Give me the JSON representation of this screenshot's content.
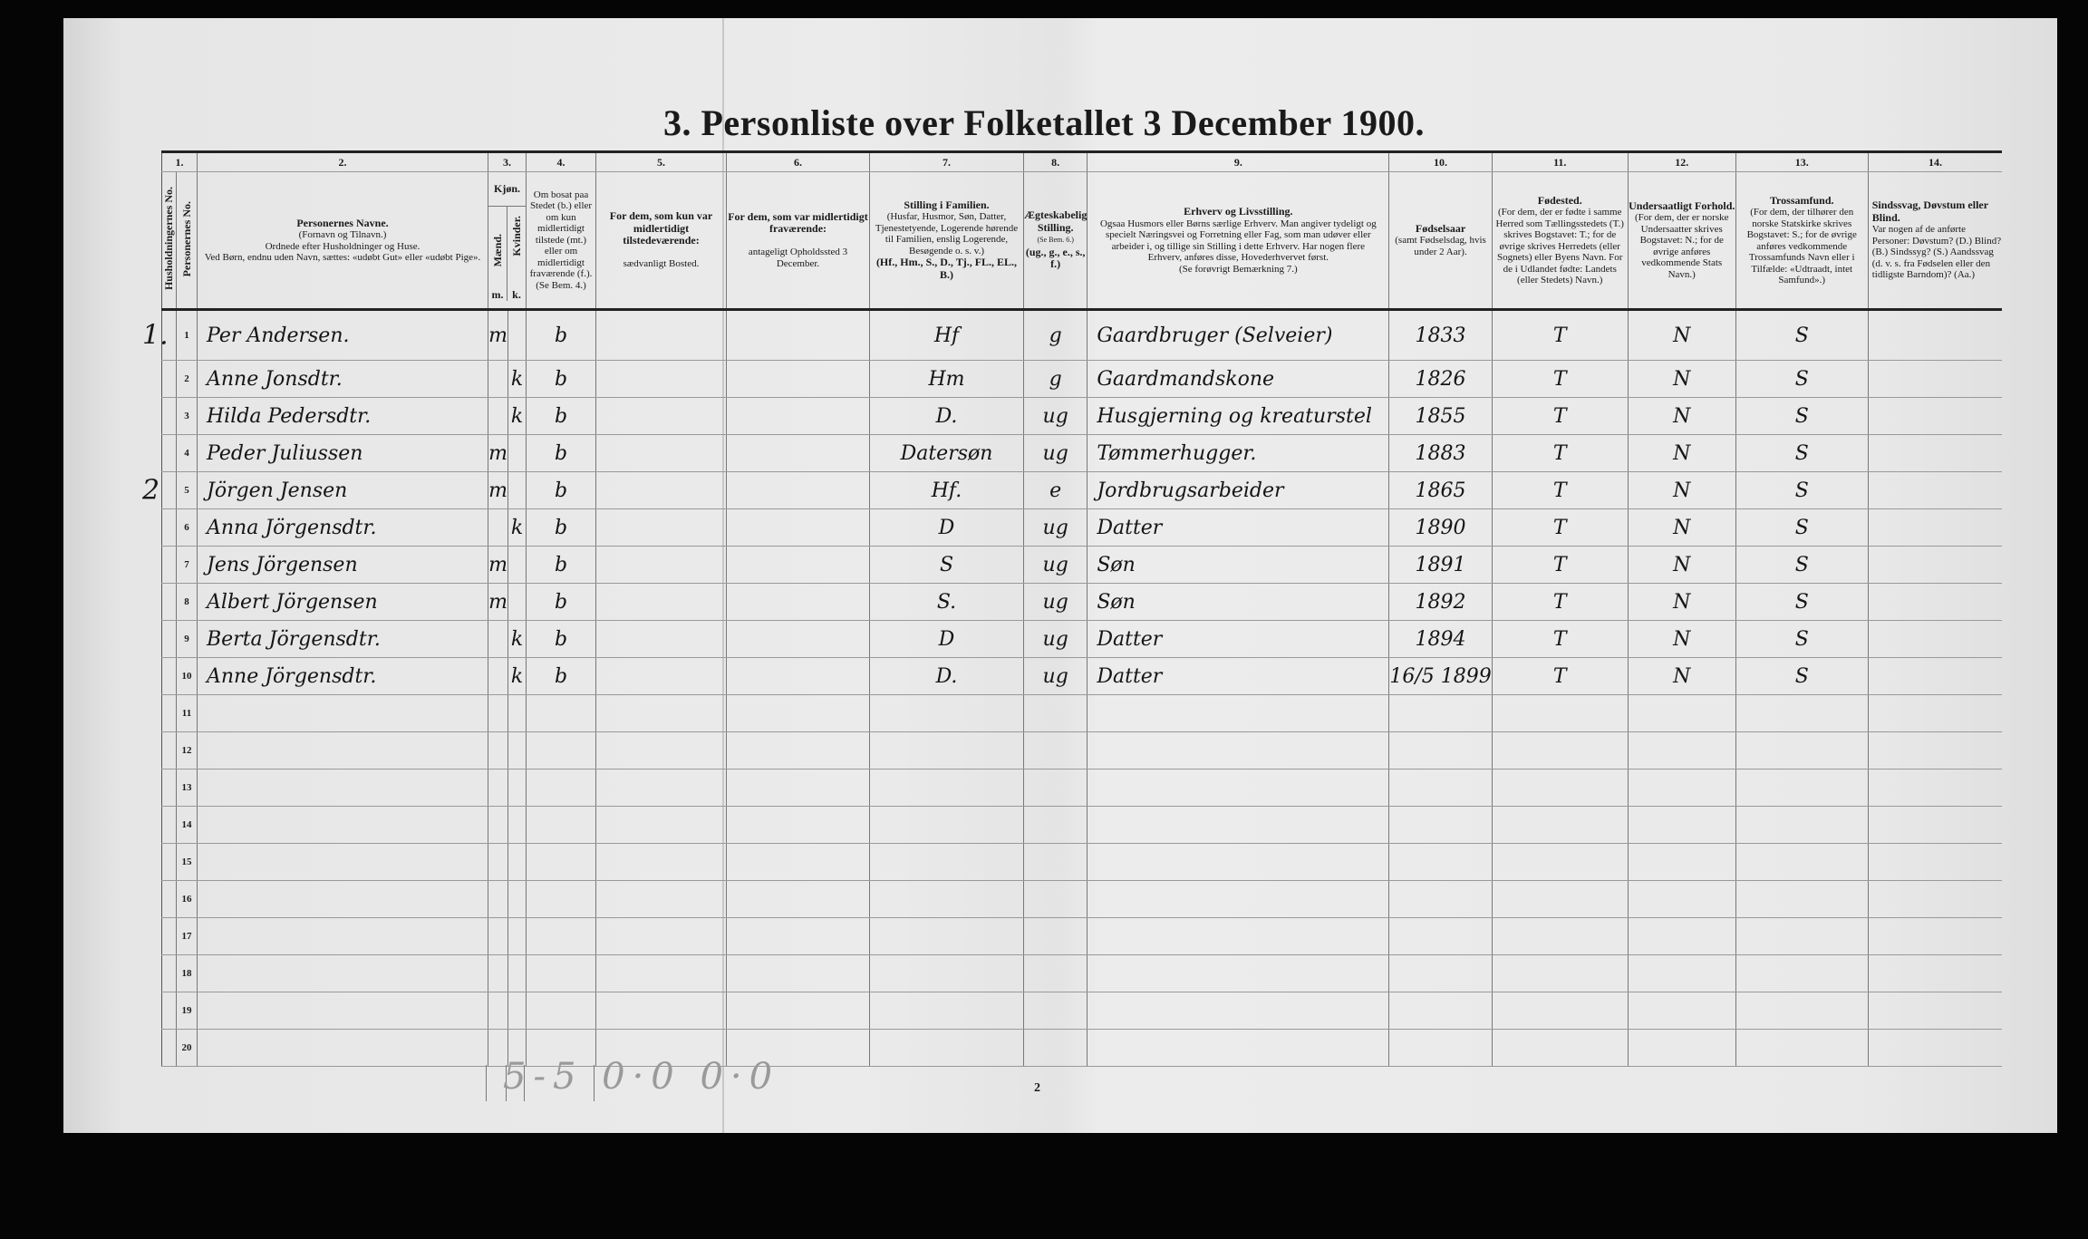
{
  "title": "3. Personliste over Folketallet 3 December 1900.",
  "headers": {
    "c1": {
      "num": "1.",
      "hh": "Husholdningernes No.",
      "pers": "Personernes No."
    },
    "c2": {
      "num": "2.",
      "title": "Personernes Navne.",
      "l1": "(Fornavn og Tilnavn.)",
      "l2": "Ordnede efter Husholdninger og Huse.",
      "l3": "Ved Børn, endnu uden Navn, sættes: «udøbt Gut» eller «udøbt Pige»."
    },
    "c3": {
      "num": "3.",
      "title": "Kjøn.",
      "m_label": "Mænd.",
      "k_label": "Kvinder.",
      "m": "m.",
      "k": "k."
    },
    "c4": {
      "num": "4.",
      "text": "Om bosat paa Stedet (b.) eller om kun midlertidigt tilstede (mt.) eller om midlertidigt fraværende (f.). (Se Bem. 4.)"
    },
    "c5": {
      "num": "5.",
      "title": "For dem, som kun var midlertidigt tilstedeværende:",
      "sub": "sædvanligt Bosted."
    },
    "c6": {
      "num": "6.",
      "title": "For dem, som var midlertidigt fraværende:",
      "sub": "antageligt Opholdssted 3 December."
    },
    "c7": {
      "num": "7.",
      "title": "Stilling i Familien.",
      "body": "(Husfar, Husmor, Søn, Datter, Tjenestetyende, Logerende hørende til Familien, enslig Logerende, Besøgende o. s. v.)",
      "codes": "(Hf., Hm., S., D., Tj., FL., EL., B.)"
    },
    "c8": {
      "num": "8.",
      "title": "Ægteskabelig Stilling.",
      "ref": "(Se Bem. 6.)",
      "codes": "(ug., g., e., s., f.)"
    },
    "c9": {
      "num": "9.",
      "title": "Erhverv og Livsstilling.",
      "body": "Ogsaa Husmors eller Børns særlige Erhverv. Man angiver tydeligt og specielt Næringsvei og Forretning eller Fag, som man udøver eller arbeider i, og tillige sin Stilling i dette Erhverv. Har nogen flere Erhverv, anføres disse, Hovederhvervet først.",
      "ref": "(Se forøvrigt Bemærkning 7.)"
    },
    "c10": {
      "num": "10.",
      "title": "Fødselsaar",
      "body": "(samt Fødselsdag, hvis under 2 Aar)."
    },
    "c11": {
      "num": "11.",
      "title": "Fødested.",
      "body": "(For dem, der er fødte i samme Herred som Tællingsstedets (T.) skrives Bogstavet: T.; for de øvrige skrives Herredets (eller Sognets) eller Byens Navn. For de i Udlandet fødte: Landets (eller Stedets) Navn.)"
    },
    "c12": {
      "num": "12.",
      "title": "Undersaatligt Forhold.",
      "body": "(For dem, der er norske Undersaatter skrives Bogstavet: N.; for de øvrige anføres vedkommende Stats Navn.)"
    },
    "c13": {
      "num": "13.",
      "title": "Trossamfund.",
      "body": "(For dem, der tilhører den norske Statskirke skrives Bogstavet: S.; for de øvrige anføres vedkommende Trossamfunds Navn eller i Tilfælde: «Udtraadt, intet Samfund».)"
    },
    "c14": {
      "num": "14.",
      "title": "Sindssvag, Døvstum eller Blind.",
      "body": "Var nogen af de anførte Personer: Døvstum? (D.) Blind? (B.) Sindssyg? (S.) Aandssvag (d. v. s. fra Fødselen eller den tidligste Barndom)? (Aa.)"
    }
  },
  "rows": [
    {
      "hh": "1.",
      "no": "1",
      "name": "Per Andersen.",
      "m": "m",
      "k": "",
      "bosat": "b",
      "stilling": "Hf",
      "egte": "g",
      "erhverv": "Gaardbruger (Selveier)",
      "aar": "1833",
      "fodested": "T",
      "under": "N",
      "tros": "S"
    },
    {
      "hh": "",
      "no": "2",
      "name": "Anne Jonsdtr.",
      "m": "",
      "k": "k",
      "bosat": "b",
      "stilling": "Hm",
      "egte": "g",
      "erhverv": "Gaardmandskone",
      "aar": "1826",
      "fodested": "T",
      "under": "N",
      "tros": "S"
    },
    {
      "hh": "",
      "no": "3",
      "name": "Hilda Pedersdtr.",
      "m": "",
      "k": "k",
      "bosat": "b",
      "stilling": "D.",
      "egte": "ug",
      "erhverv": "Husgjerning og kreaturstel",
      "aar": "1855",
      "fodested": "T",
      "under": "N",
      "tros": "S"
    },
    {
      "hh": "",
      "no": "4",
      "name": "Peder Juliussen",
      "m": "m",
      "k": "",
      "bosat": "b",
      "stilling": "Datersøn",
      "egte": "ug",
      "erhverv": "Tømmerhugger.",
      "aar": "1883",
      "fodested": "T",
      "under": "N",
      "tros": "S"
    },
    {
      "hh": "2",
      "no": "5",
      "name": "Jörgen Jensen",
      "m": "m",
      "k": "",
      "bosat": "b",
      "stilling": "Hf.",
      "egte": "e",
      "erhverv": "Jordbrugsarbeider",
      "aar": "1865",
      "fodested": "T",
      "under": "N",
      "tros": "S"
    },
    {
      "hh": "",
      "no": "6",
      "name": "Anna Jörgensdtr.",
      "m": "",
      "k": "k",
      "bosat": "b",
      "stilling": "D",
      "egte": "ug",
      "erhverv": "Datter",
      "aar": "1890",
      "fodested": "T",
      "under": "N",
      "tros": "S"
    },
    {
      "hh": "",
      "no": "7",
      "name": "Jens Jörgensen",
      "m": "m",
      "k": "",
      "bosat": "b",
      "stilling": "S",
      "egte": "ug",
      "erhverv": "Søn",
      "aar": "1891",
      "fodested": "T",
      "under": "N",
      "tros": "S"
    },
    {
      "hh": "",
      "no": "8",
      "name": "Albert Jörgensen",
      "m": "m",
      "k": "",
      "bosat": "b",
      "stilling": "S.",
      "egte": "ug",
      "erhverv": "Søn",
      "aar": "1892",
      "fodested": "T",
      "under": "N",
      "tros": "S"
    },
    {
      "hh": "",
      "no": "9",
      "name": "Berta Jörgensdtr.",
      "m": "",
      "k": "k",
      "bosat": "b",
      "stilling": "D",
      "egte": "ug",
      "erhverv": "Datter",
      "aar": "1894",
      "fodested": "T",
      "under": "N",
      "tros": "S"
    },
    {
      "hh": "",
      "no": "10",
      "name": "Anne Jörgensdtr.",
      "m": "",
      "k": "k",
      "bosat": "b",
      "stilling": "D.",
      "egte": "ug",
      "erhverv": "Datter",
      "aar": "16/5 1899",
      "fodested": "T",
      "under": "N",
      "tros": "S"
    },
    {
      "no": "11"
    },
    {
      "no": "12"
    },
    {
      "no": "13"
    },
    {
      "no": "14"
    },
    {
      "no": "15"
    },
    {
      "no": "16"
    },
    {
      "no": "17"
    },
    {
      "no": "18"
    },
    {
      "no": "19"
    },
    {
      "no": "20"
    }
  ],
  "footer": {
    "pencil_note": "5-5 0·0 0·0",
    "page_number": "2"
  }
}
